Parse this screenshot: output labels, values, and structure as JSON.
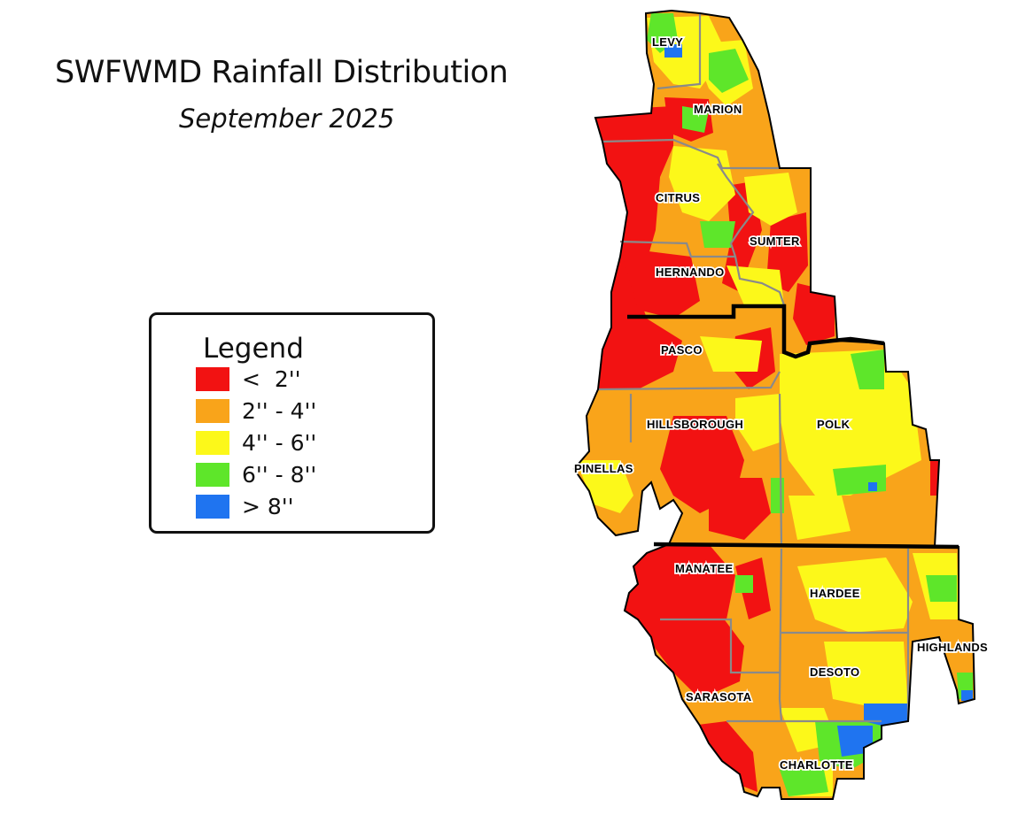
{
  "title": "SWFWMD Rainfall Distribution",
  "subtitle": "September 2025",
  "legend": {
    "title": "Legend",
    "classes": [
      {
        "label": "<  2''",
        "color": "#f21212"
      },
      {
        "label": "2'' - 4''",
        "color": "#f9a41a"
      },
      {
        "label": "4'' - 6''",
        "color": "#fcf81a"
      },
      {
        "label": "6'' - 8''",
        "color": "#5ee62a"
      },
      {
        "label": "> 8''",
        "color": "#1f74f0"
      }
    ]
  },
  "counties": [
    "LEVY",
    "MARION",
    "CITRUS",
    "SUMTER",
    "HERNANDO",
    "PASCO",
    "HILLSBOROUGH",
    "POLK",
    "PINELLAS",
    "MANATEE",
    "HARDEE",
    "HIGHLANDS",
    "DESOTO",
    "SARASOTA",
    "CHARLOTTE"
  ]
}
